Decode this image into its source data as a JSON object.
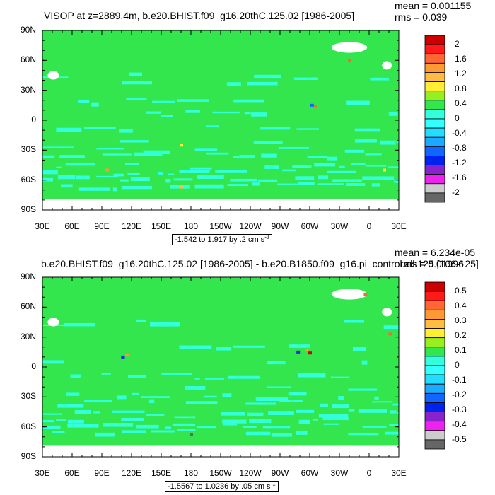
{
  "colors": {
    "ocean_green": "#33e64d",
    "cyan_band": "#33ffdd",
    "land_white": "#ffffff",
    "frame": "#000000"
  },
  "chart_data": [
    {
      "type": "heatmap",
      "title": "VISOP at z=2889.4m, b.e20.BHIST.f09_g16.20thC.125.02 [1986-2005]",
      "mean_label": "mean = 0.001155",
      "rms_label": "rms = 0.039",
      "range_label": "-1.542 to 1.917 by .2 cm s",
      "range_units_exp": "-1",
      "lat_labels": [
        "90N",
        "60N",
        "30N",
        "0",
        "30S",
        "60S",
        "90S"
      ],
      "lat_values": [
        90,
        60,
        30,
        0,
        -30,
        -60,
        -90
      ],
      "lon_labels": [
        "30E",
        "60E",
        "90E",
        "120E",
        "150E",
        "180",
        "150W",
        "120W",
        "90W",
        "60W",
        "30W",
        "0",
        "30E"
      ],
      "lon_values": [
        30,
        60,
        90,
        120,
        150,
        180,
        210,
        240,
        270,
        300,
        330,
        360,
        390
      ],
      "lon_range": [
        30,
        390
      ],
      "lat_range": [
        -90,
        90
      ],
      "colorbar": {
        "labels": [
          "2",
          "1.6",
          "1.2",
          "0.8",
          "0.4",
          "0",
          "-0.4",
          "-0.8",
          "-1.2",
          "-1.6",
          "-2"
        ],
        "colors": [
          "#cc0000",
          "#ff1a1a",
          "#ff6633",
          "#ff9933",
          "#ffbb44",
          "#ffee33",
          "#99ee22",
          "#33e64d",
          "#33ffdd",
          "#33ffff",
          "#22ddff",
          "#1aaaff",
          "#1166ff",
          "#0022ee",
          "#8822cc",
          "#ee22ee",
          "#cccccc",
          "#666666"
        ]
      }
    },
    {
      "type": "heatmap",
      "title": "b.e20.BHIST.f09_g16.20thC.125.02 [1986-2005] - b.e20.B1850.f09_g16.pi_control.all.125 [106-125]",
      "mean_label": "mean = 6.234e-05",
      "rms_label": "rms = 0.01996",
      "range_label": "-1.5567 to 1.0236 by .05 cm s",
      "range_units_exp": "-1",
      "lat_labels": [
        "90N",
        "60N",
        "30N",
        "0",
        "30S",
        "60S",
        "90S"
      ],
      "lat_values": [
        90,
        60,
        30,
        0,
        -30,
        -60,
        -90
      ],
      "lon_labels": [
        "30E",
        "60E",
        "90E",
        "120E",
        "150E",
        "180",
        "150W",
        "120W",
        "90W",
        "60W",
        "30W",
        "0",
        "30E"
      ],
      "lon_values": [
        30,
        60,
        90,
        120,
        150,
        180,
        210,
        240,
        270,
        300,
        330,
        360,
        390
      ],
      "lon_range": [
        30,
        390
      ],
      "lat_range": [
        -90,
        90
      ],
      "colorbar": {
        "labels": [
          "0.5",
          "0.4",
          "0.3",
          "0.2",
          "0.1",
          "0",
          "-0.1",
          "-0.2",
          "-0.3",
          "-0.4",
          "-0.5"
        ],
        "colors": [
          "#cc0000",
          "#ff1a1a",
          "#ff6633",
          "#ff9933",
          "#ffbb44",
          "#ffee33",
          "#99ee22",
          "#33e64d",
          "#33ffdd",
          "#33ffff",
          "#22ddff",
          "#1aaaff",
          "#1166ff",
          "#0022ee",
          "#8822cc",
          "#ee22ee",
          "#cccccc",
          "#666666"
        ]
      }
    }
  ]
}
